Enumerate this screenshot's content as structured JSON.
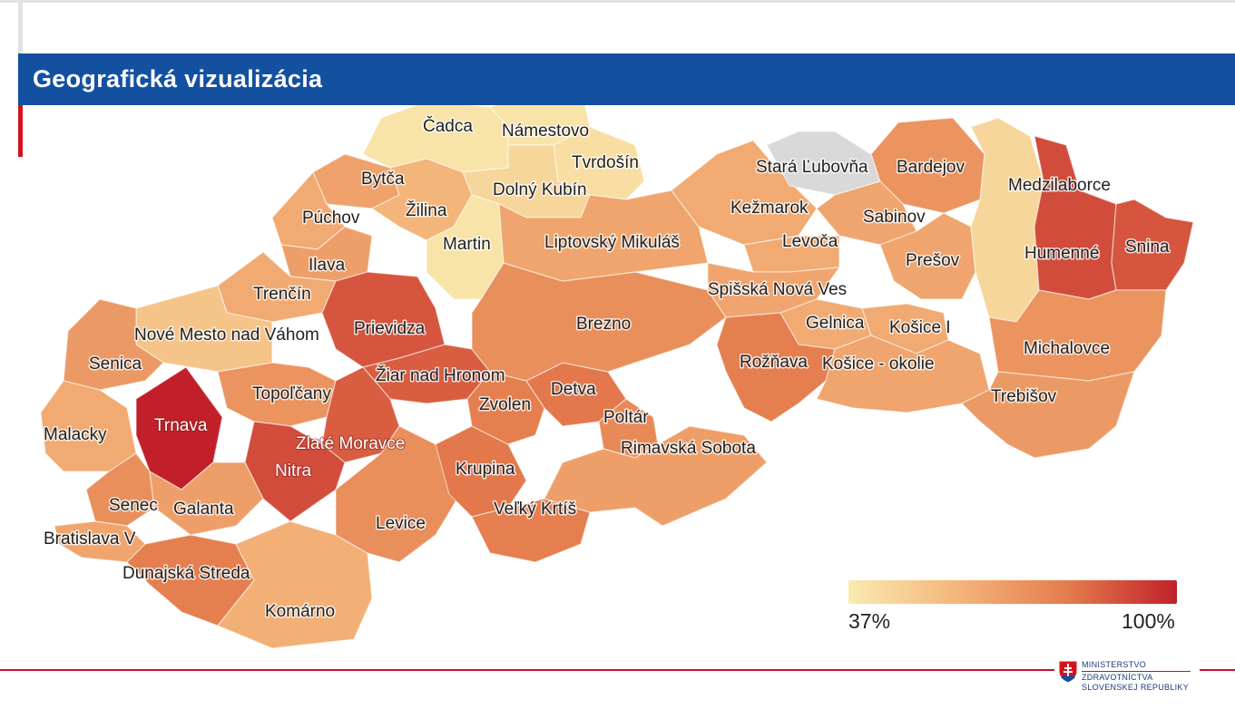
{
  "header": {
    "title": "Geografická vizualizácia"
  },
  "legend": {
    "min_label": "37%",
    "max_label": "100%",
    "min": 37,
    "max": 100,
    "gradient_colors": [
      "#f9ebb0",
      "#f4b57a",
      "#e47c4d",
      "#c1202a"
    ]
  },
  "no_data_color": "#d9d9d9",
  "districts": [
    {
      "name": "Čadca",
      "value": 40
    },
    {
      "name": "Námestovo",
      "value": 40
    },
    {
      "name": "Tvrdošín",
      "value": 42
    },
    {
      "name": "Dolný Kubín",
      "value": 45
    },
    {
      "name": "Bytča",
      "value": 65
    },
    {
      "name": "Žilina",
      "value": 58
    },
    {
      "name": "Púchov",
      "value": 62
    },
    {
      "name": "Martin",
      "value": 40
    },
    {
      "name": "Ilava",
      "value": 66
    },
    {
      "name": "Trenčín",
      "value": 62
    },
    {
      "name": "Nové Mesto nad Váhom",
      "value": 52
    },
    {
      "name": "Prievidza",
      "value": 88
    },
    {
      "name": "Senica",
      "value": 68
    },
    {
      "name": "Žiar nad Hronom",
      "value": 86
    },
    {
      "name": "Topoľčany",
      "value": 70
    },
    {
      "name": "Malacky",
      "value": 62
    },
    {
      "name": "Trnava",
      "value": 100
    },
    {
      "name": "Zlaté Moravce",
      "value": 86
    },
    {
      "name": "Nitra",
      "value": 90
    },
    {
      "name": "Senec",
      "value": 72
    },
    {
      "name": "Galanta",
      "value": 66
    },
    {
      "name": "Bratislava V",
      "value": 64
    },
    {
      "name": "Dunajská Streda",
      "value": 78
    },
    {
      "name": "Komárno",
      "value": 60
    },
    {
      "name": "Levice",
      "value": 72
    },
    {
      "name": "Krupina",
      "value": 80
    },
    {
      "name": "Veľký Krtíš",
      "value": 78
    },
    {
      "name": "Zvolen",
      "value": 78
    },
    {
      "name": "Detva",
      "value": 80
    },
    {
      "name": "Poltár",
      "value": 74
    },
    {
      "name": "Rimavská Sobota",
      "value": 66
    },
    {
      "name": "Brezno",
      "value": 72
    },
    {
      "name": "Liptovský Mikuláš",
      "value": 64
    },
    {
      "name": "Kežmarok",
      "value": 62
    },
    {
      "name": "Stará Ľubovňa",
      "value": null
    },
    {
      "name": "Bardejov",
      "value": 70
    },
    {
      "name": "Sabinov",
      "value": 64
    },
    {
      "name": "Levoča",
      "value": 62
    },
    {
      "name": "Prešov",
      "value": 64
    },
    {
      "name": "Spišská Nová Ves",
      "value": 64
    },
    {
      "name": "Gelnica",
      "value": 62
    },
    {
      "name": "Košice I",
      "value": 62
    },
    {
      "name": "Rožňava",
      "value": 78
    },
    {
      "name": "Košice - okolie",
      "value": 64
    },
    {
      "name": "Medzilaborce",
      "value": 45
    },
    {
      "name": "Humenné",
      "value": 90
    },
    {
      "name": "Snina",
      "value": 88
    },
    {
      "name": "Michalovce",
      "value": 70
    },
    {
      "name": "Trebišov",
      "value": 68
    }
  ],
  "logo": {
    "line1": "MINISTERSTVO",
    "line2": "ZDRAVOTNÍCTVA",
    "line3": "SLOVENSKEJ REPUBLIKY",
    "brand_color": "#1b3a7a"
  }
}
